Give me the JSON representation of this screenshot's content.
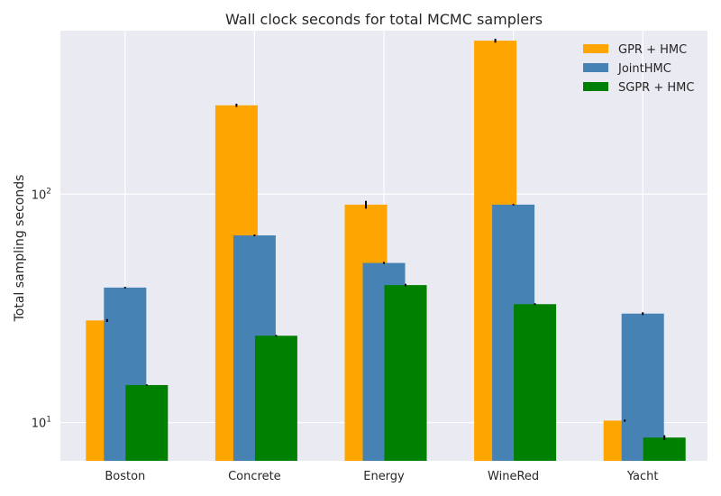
{
  "chart_data": {
    "type": "bar",
    "title": "Wall clock seconds for total MCMC samplers",
    "xlabel": "",
    "ylabel": "Total sampling seconds",
    "yscale": "log",
    "ylim": [
      6.8,
      520
    ],
    "yticks": [
      {
        "value": 10,
        "label": "10",
        "exp": "1"
      },
      {
        "value": 100,
        "label": "10",
        "exp": "2"
      }
    ],
    "grid": true,
    "legend_position": "top-right",
    "categories": [
      "Boston",
      "Concrete",
      "Energy",
      "WineRed",
      "Yacht"
    ],
    "series": [
      {
        "name": "GPR + HMC",
        "color": "#ffa500",
        "values": [
          28,
          245,
          90,
          470,
          10.2
        ],
        "errors": [
          0.4,
          4,
          3.5,
          9,
          0.1
        ]
      },
      {
        "name": "JointHMC",
        "color": "#4682b4",
        "values": [
          39,
          66,
          50,
          90,
          30
        ],
        "errors": [
          0.3,
          0.6,
          0.5,
          0.6,
          0.4
        ]
      },
      {
        "name": "SGPR + HMC",
        "color": "#008000",
        "values": [
          14.6,
          24,
          40,
          33,
          8.6
        ],
        "errors": [
          0.1,
          0.2,
          0.5,
          0.3,
          0.2
        ]
      }
    ]
  }
}
